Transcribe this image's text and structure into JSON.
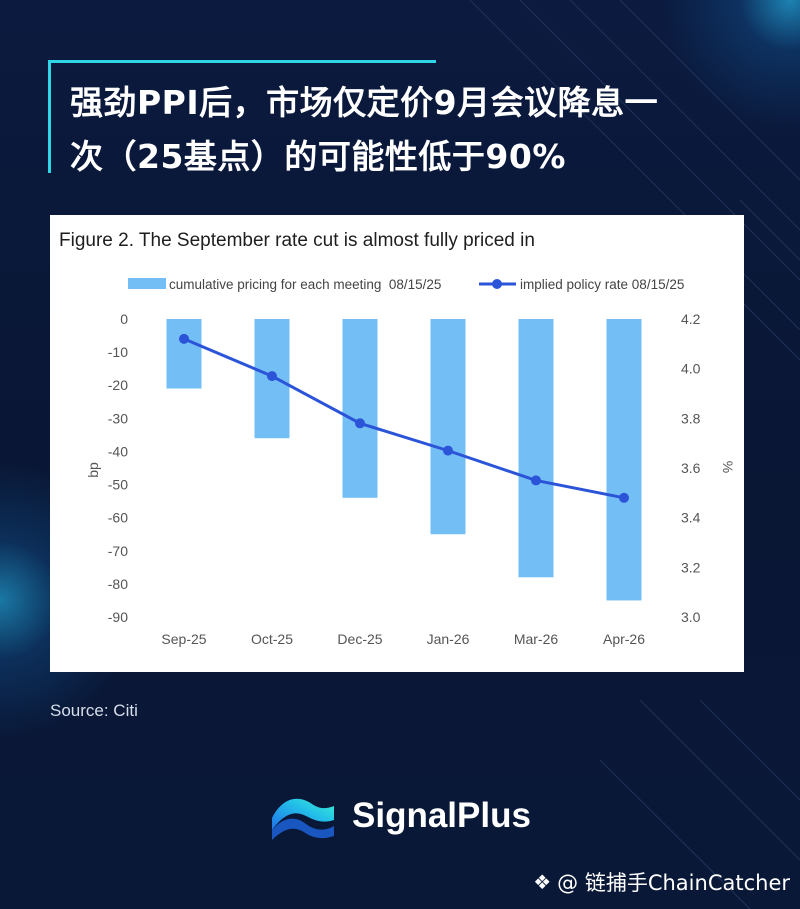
{
  "title": {
    "line1": "强劲PPI后，市场仅定价9月会议降息一",
    "line2": "次（25基点）的可能性低于90%"
  },
  "source": "Source: Citi",
  "brand": {
    "name": "SignalPlus"
  },
  "watermark": {
    "icon": "diamond-icon",
    "text": "@ 链捕手ChainCatcher"
  },
  "chart_data": {
    "type": "bar",
    "title": "Figure 2. The September rate cut is almost fully priced in",
    "categories": [
      "Sep-25",
      "Oct-25",
      "Dec-25",
      "Jan-26",
      "Mar-26",
      "Apr-26"
    ],
    "series": [
      {
        "name": "cumulative pricing for each meeting  08/15/25",
        "type": "bar",
        "axis": "left",
        "color": "#73bff5",
        "values": [
          -21,
          -36,
          -54,
          -65,
          -78,
          -85
        ]
      },
      {
        "name": "implied policy rate 08/15/25",
        "type": "line",
        "axis": "right",
        "color": "#2b54d8",
        "values": [
          4.12,
          3.97,
          3.78,
          3.67,
          3.55,
          3.48
        ]
      }
    ],
    "ylabel": "bp",
    "y2label": "%",
    "ylim": [
      -90,
      0
    ],
    "y2lim": [
      3.0,
      4.2
    ],
    "yticks": [
      "0",
      "-10",
      "-20",
      "-30",
      "-40",
      "-50",
      "-60",
      "-70",
      "-80",
      "-90"
    ],
    "y2ticks": [
      "4.2",
      "4.0",
      "3.8",
      "3.6",
      "3.4",
      "3.2",
      "3.0"
    ],
    "grid": false,
    "legend": "top"
  }
}
